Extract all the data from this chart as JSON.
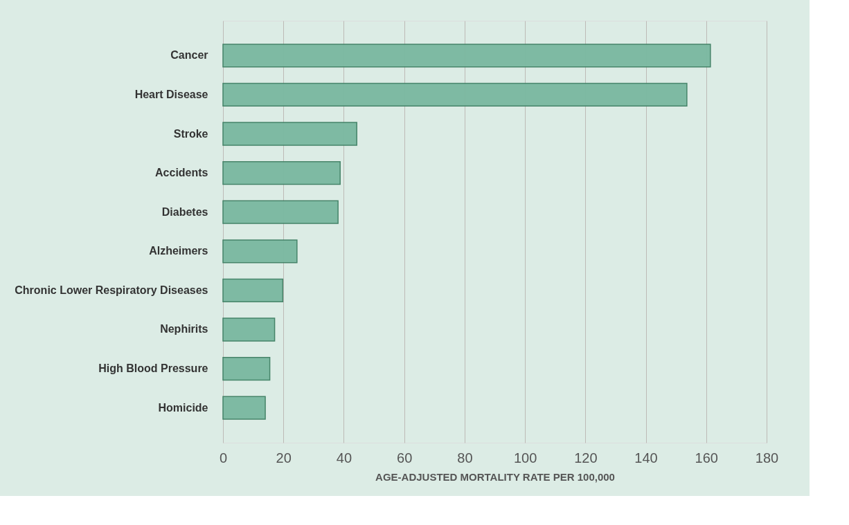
{
  "chart_data": {
    "type": "bar",
    "orientation": "horizontal",
    "xlabel": "AGE-ADJUSTED MORTALITY RATE PER 100,000",
    "categories": [
      "Cancer",
      "Heart Disease",
      "Stroke",
      "Accidents",
      "Diabetes",
      "Alzheimers",
      "Chronic Lower Respiratory Diseases",
      "Nephirits",
      "High Blood Pressure",
      "Homicide"
    ],
    "values": [
      161.4,
      153.6,
      44.3,
      38.8,
      38.1,
      24.5,
      19.8,
      17.1,
      15.5,
      14.0
    ],
    "color": "#7ab8a0",
    "xlim": [
      0,
      180
    ],
    "xticks": [
      0,
      20,
      40,
      60,
      80,
      100,
      120,
      140,
      160,
      180
    ],
    "grid": "x"
  }
}
